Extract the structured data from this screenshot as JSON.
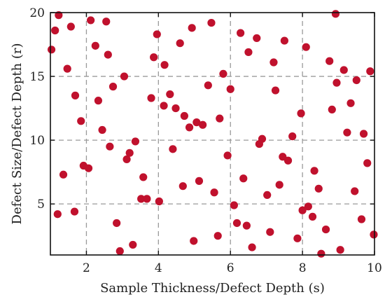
{
  "chart_data": {
    "type": "scatter",
    "title": "",
    "xlabel": "Sample Thickness/Defect Depth (s)",
    "ylabel": "Defect Size/Defect Depth (r)",
    "xlim": [
      1,
      10
    ],
    "ylim": [
      1,
      20
    ],
    "xticks": [
      2,
      4,
      6,
      8,
      10
    ],
    "yticks": [
      5,
      10,
      15,
      20
    ],
    "grid": true,
    "marker_color": "#c0112d",
    "series": [
      {
        "points": [
          [
            1.03,
            17.1
          ],
          [
            1.13,
            18.6
          ],
          [
            1.23,
            19.8
          ],
          [
            1.2,
            4.2
          ],
          [
            1.36,
            7.3
          ],
          [
            1.47,
            15.6
          ],
          [
            1.57,
            18.9
          ],
          [
            1.67,
            4.4
          ],
          [
            1.69,
            13.5
          ],
          [
            1.85,
            11.5
          ],
          [
            1.92,
            8.0
          ],
          [
            2.06,
            7.8
          ],
          [
            2.12,
            19.4
          ],
          [
            2.25,
            17.4
          ],
          [
            2.33,
            13.1
          ],
          [
            2.44,
            10.8
          ],
          [
            2.55,
            19.3
          ],
          [
            2.6,
            16.7
          ],
          [
            2.65,
            9.5
          ],
          [
            2.74,
            14.2
          ],
          [
            2.84,
            3.5
          ],
          [
            2.93,
            1.3
          ],
          [
            3.05,
            15.0
          ],
          [
            3.12,
            8.5
          ],
          [
            3.2,
            9.0
          ],
          [
            3.29,
            1.8
          ],
          [
            3.36,
            9.9
          ],
          [
            3.52,
            5.4
          ],
          [
            3.58,
            7.1
          ],
          [
            3.68,
            5.4
          ],
          [
            3.8,
            13.3
          ],
          [
            3.87,
            16.5
          ],
          [
            3.96,
            18.3
          ],
          [
            4.02,
            5.2
          ],
          [
            4.15,
            12.7
          ],
          [
            4.17,
            15.9
          ],
          [
            4.32,
            13.6
          ],
          [
            4.4,
            9.3
          ],
          [
            4.48,
            12.5
          ],
          [
            4.6,
            17.6
          ],
          [
            4.68,
            6.4
          ],
          [
            4.72,
            11.9
          ],
          [
            4.86,
            11.0
          ],
          [
            4.93,
            18.8
          ],
          [
            4.98,
            2.1
          ],
          [
            5.06,
            11.4
          ],
          [
            5.13,
            6.8
          ],
          [
            5.23,
            11.2
          ],
          [
            5.38,
            14.3
          ],
          [
            5.47,
            19.2
          ],
          [
            5.55,
            5.9
          ],
          [
            5.65,
            2.5
          ],
          [
            5.7,
            11.7
          ],
          [
            5.8,
            15.2
          ],
          [
            5.92,
            8.8
          ],
          [
            6.0,
            14.0
          ],
          [
            6.1,
            4.9
          ],
          [
            6.18,
            3.5
          ],
          [
            6.28,
            18.4
          ],
          [
            6.36,
            7.0
          ],
          [
            6.45,
            3.3
          ],
          [
            6.5,
            16.9
          ],
          [
            6.6,
            1.6
          ],
          [
            6.73,
            18.0
          ],
          [
            6.8,
            9.7
          ],
          [
            6.88,
            10.1
          ],
          [
            7.02,
            5.7
          ],
          [
            7.1,
            2.8
          ],
          [
            7.2,
            16.1
          ],
          [
            7.25,
            13.9
          ],
          [
            7.36,
            6.5
          ],
          [
            7.45,
            8.7
          ],
          [
            7.5,
            17.8
          ],
          [
            7.6,
            8.4
          ],
          [
            7.72,
            10.3
          ],
          [
            7.86,
            2.3
          ],
          [
            7.96,
            12.1
          ],
          [
            8.0,
            4.5
          ],
          [
            8.1,
            17.3
          ],
          [
            8.16,
            4.8
          ],
          [
            8.28,
            4.0
          ],
          [
            8.33,
            7.6
          ],
          [
            8.45,
            6.2
          ],
          [
            8.52,
            1.1
          ],
          [
            8.65,
            3.0
          ],
          [
            8.75,
            16.2
          ],
          [
            8.82,
            12.4
          ],
          [
            8.95,
            14.5
          ],
          [
            8.92,
            19.9
          ],
          [
            9.05,
            1.4
          ],
          [
            9.15,
            15.5
          ],
          [
            9.24,
            10.6
          ],
          [
            9.34,
            12.9
          ],
          [
            9.45,
            6.0
          ],
          [
            9.5,
            14.7
          ],
          [
            9.64,
            3.8
          ],
          [
            9.7,
            10.5
          ],
          [
            9.8,
            8.2
          ],
          [
            9.88,
            15.4
          ],
          [
            9.98,
            2.6
          ]
        ]
      }
    ]
  }
}
